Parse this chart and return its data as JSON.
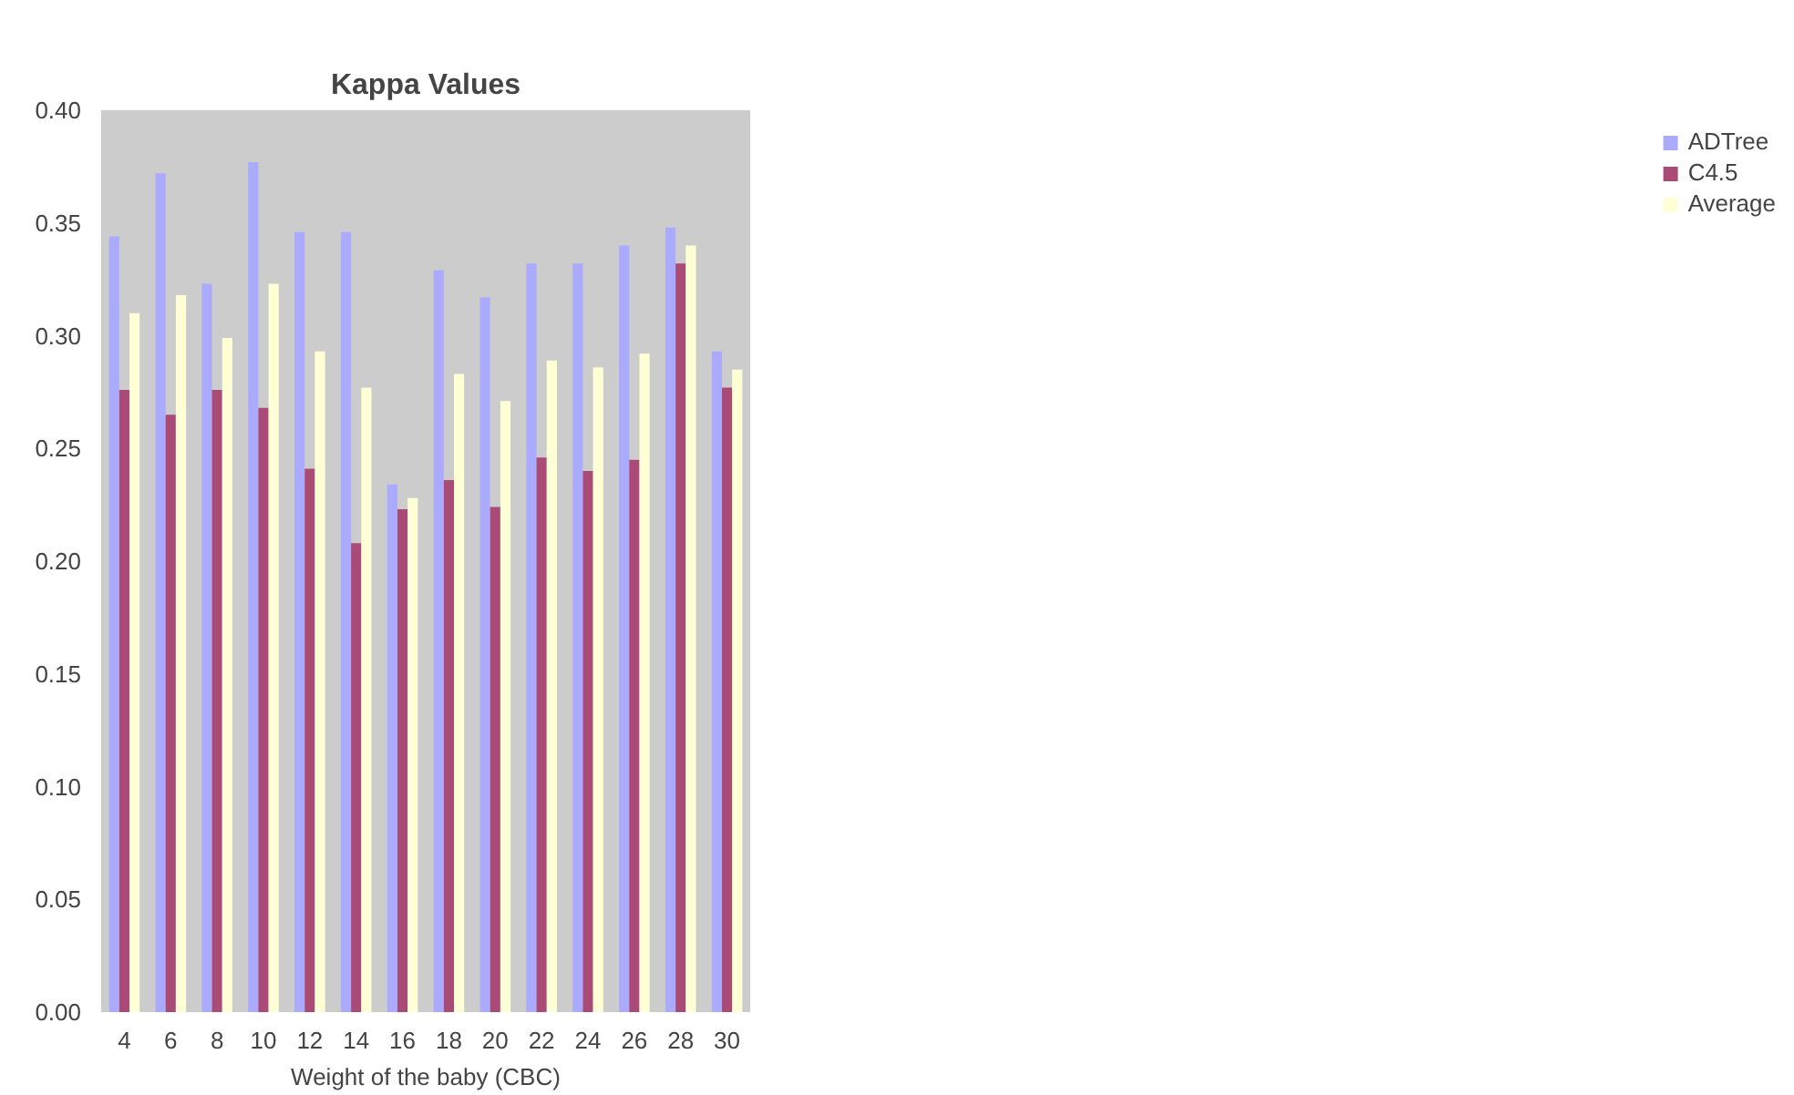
{
  "chart_data": {
    "type": "bar",
    "title": "Kappa Values",
    "xlabel": "Weight of the baby (CBC)",
    "categories": [
      "4",
      "6",
      "8",
      "10",
      "12",
      "14",
      "16",
      "18",
      "20",
      "22",
      "24",
      "26",
      "28",
      "30"
    ],
    "series": [
      {
        "name": "ADTree",
        "color": "#aaaaff",
        "values": [
          0.344,
          0.372,
          0.323,
          0.377,
          0.346,
          0.346,
          0.234,
          0.329,
          0.317,
          0.332,
          0.332,
          0.34,
          0.348,
          0.293
        ]
      },
      {
        "name": "C4.5",
        "color": "#aa4a77",
        "values": [
          0.276,
          0.265,
          0.276,
          0.268,
          0.241,
          0.208,
          0.223,
          0.236,
          0.224,
          0.246,
          0.24,
          0.245,
          0.332,
          0.277
        ]
      },
      {
        "name": "Average",
        "color": "#ffffd6",
        "values": [
          0.31,
          0.318,
          0.299,
          0.323,
          0.293,
          0.277,
          0.228,
          0.283,
          0.271,
          0.289,
          0.286,
          0.292,
          0.34,
          0.285
        ]
      }
    ],
    "ylim": [
      0,
      0.4
    ],
    "yticks": [
      {
        "value": 0,
        "label": "0.00"
      },
      {
        "value": 0.05,
        "label": "0.05"
      },
      {
        "value": 0.1,
        "label": "0.10"
      },
      {
        "value": 0.15,
        "label": "0.15"
      },
      {
        "value": 0.2,
        "label": "0.20"
      },
      {
        "value": 0.25,
        "label": "0.25"
      },
      {
        "value": 0.3,
        "label": "0.30"
      },
      {
        "value": 0.35,
        "label": "0.35"
      },
      {
        "value": 0.4,
        "label": "0.40"
      }
    ],
    "grid": false,
    "legend": "right"
  }
}
